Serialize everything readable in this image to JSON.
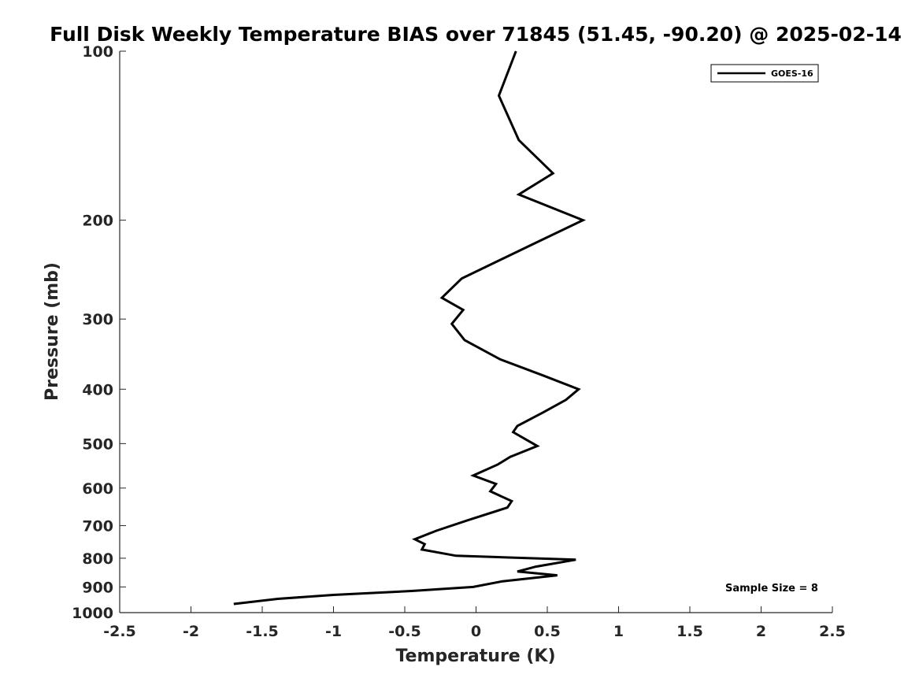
{
  "chart_data": {
    "type": "line",
    "title": "Full Disk Weekly Temperature BIAS over 71845 (51.45, -90.20) @ 2025-02-14",
    "xlabel": "Temperature (K)",
    "ylabel": "Pressure (mb)",
    "xlim": [
      -2.5,
      2.5
    ],
    "ylim": [
      100,
      1000
    ],
    "y_scale": "log",
    "y_reversed": true,
    "grid": false,
    "legend_position": "top-right",
    "x_ticks": [
      "-2.5",
      "-2",
      "-1.5",
      "-1",
      "-0.5",
      "0",
      "0.5",
      "1",
      "1.5",
      "2",
      "2.5"
    ],
    "y_ticks": [
      "100",
      "200",
      "300",
      "400",
      "500",
      "600",
      "700",
      "800",
      "900",
      "1000"
    ],
    "annotation": "Sample Size = 8",
    "series": [
      {
        "name": "GOES-16",
        "color": "#000000",
        "points": [
          {
            "x": 0.28,
            "y": 100
          },
          {
            "x": 0.16,
            "y": 120
          },
          {
            "x": 0.3,
            "y": 144
          },
          {
            "x": 0.54,
            "y": 165
          },
          {
            "x": 0.3,
            "y": 180
          },
          {
            "x": 0.75,
            "y": 200
          },
          {
            "x": 0.41,
            "y": 220
          },
          {
            "x": -0.1,
            "y": 254
          },
          {
            "x": -0.24,
            "y": 275
          },
          {
            "x": -0.09,
            "y": 289
          },
          {
            "x": -0.17,
            "y": 306
          },
          {
            "x": -0.08,
            "y": 327
          },
          {
            "x": 0.17,
            "y": 354
          },
          {
            "x": 0.47,
            "y": 378
          },
          {
            "x": 0.72,
            "y": 400
          },
          {
            "x": 0.63,
            "y": 418
          },
          {
            "x": 0.47,
            "y": 440
          },
          {
            "x": 0.29,
            "y": 465
          },
          {
            "x": 0.26,
            "y": 477
          },
          {
            "x": 0.34,
            "y": 490
          },
          {
            "x": 0.43,
            "y": 505
          },
          {
            "x": 0.24,
            "y": 528
          },
          {
            "x": 0.15,
            "y": 545
          },
          {
            "x": -0.02,
            "y": 570
          },
          {
            "x": 0.14,
            "y": 590
          },
          {
            "x": 0.1,
            "y": 608
          },
          {
            "x": 0.25,
            "y": 633
          },
          {
            "x": 0.22,
            "y": 650
          },
          {
            "x": -0.06,
            "y": 685
          },
          {
            "x": -0.28,
            "y": 715
          },
          {
            "x": -0.43,
            "y": 740
          },
          {
            "x": -0.36,
            "y": 755
          },
          {
            "x": -0.38,
            "y": 772
          },
          {
            "x": -0.14,
            "y": 792
          },
          {
            "x": 0.7,
            "y": 805
          },
          {
            "x": 0.42,
            "y": 828
          },
          {
            "x": 0.29,
            "y": 845
          },
          {
            "x": 0.57,
            "y": 858
          },
          {
            "x": 0.18,
            "y": 880
          },
          {
            "x": -0.02,
            "y": 900
          },
          {
            "x": -0.45,
            "y": 915
          },
          {
            "x": -1.0,
            "y": 930
          },
          {
            "x": -1.39,
            "y": 945
          },
          {
            "x": -1.7,
            "y": 965
          }
        ]
      }
    ]
  }
}
